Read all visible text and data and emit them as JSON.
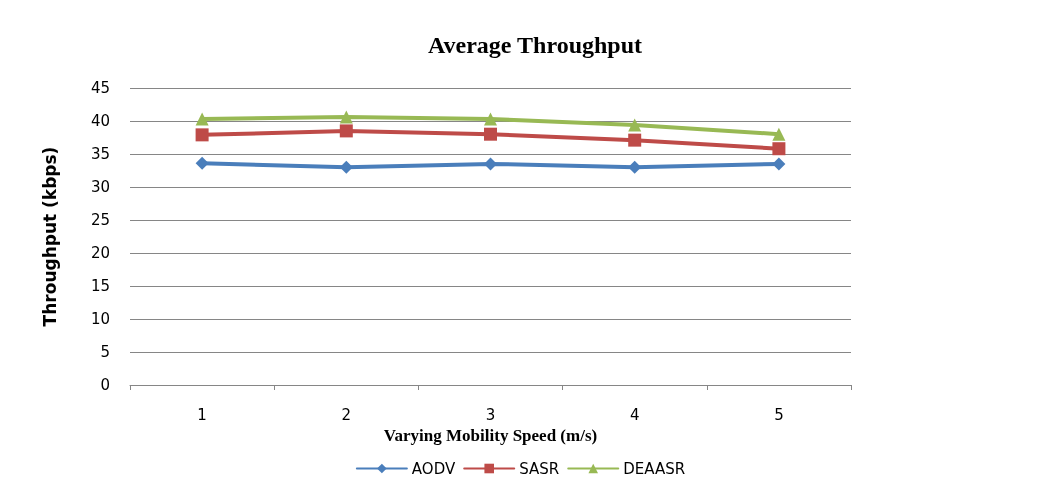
{
  "chart_data": {
    "type": "line",
    "title": "Average Throughput",
    "xlabel": "Varying Mobility Speed (m/s)",
    "ylabel": "Throughput (kbps)",
    "categories": [
      "1",
      "2",
      "3",
      "4",
      "5"
    ],
    "series": [
      {
        "name": "AODV",
        "color": "#4a7ebb",
        "marker": "diamond",
        "values": [
          33.6,
          33.0,
          33.5,
          33.0,
          33.5
        ]
      },
      {
        "name": "SASR",
        "color": "#be4b48",
        "marker": "square",
        "values": [
          37.9,
          38.5,
          38.0,
          37.1,
          35.8
        ]
      },
      {
        "name": "DEAASR",
        "color": "#98b954",
        "marker": "triangle",
        "values": [
          40.3,
          40.6,
          40.3,
          39.4,
          38.0
        ]
      }
    ],
    "ylim": [
      0,
      45
    ],
    "yticks": [
      0,
      5,
      10,
      15,
      20,
      25,
      30,
      35,
      40,
      45
    ],
    "grid": "y",
    "legend": "bottom",
    "line_style": "solid"
  }
}
